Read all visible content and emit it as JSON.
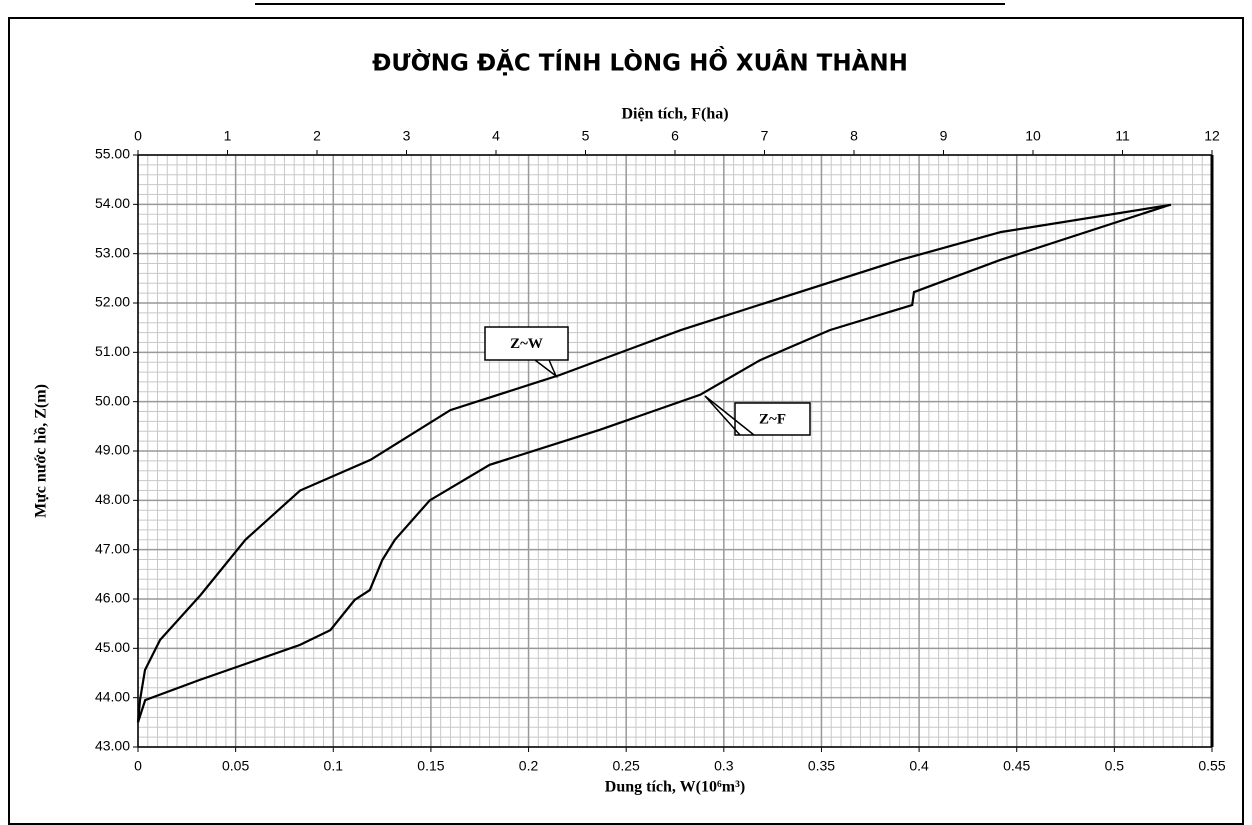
{
  "chart_data": {
    "type": "line",
    "title": "ĐƯỜNG ĐẶC TÍNH LÒNG HỒ XUÂN THÀNH",
    "x_label": "Dung tích, W(10⁶m³)",
    "x2_label": "Diện tích, F(ha)",
    "y_label": "Mực nước hồ, Z(m)",
    "xlim": [
      0,
      0.55
    ],
    "xticks": [
      0,
      0.05,
      0.1,
      0.15,
      0.2,
      0.25,
      0.3,
      0.35,
      0.4,
      0.45,
      0.5,
      0.55
    ],
    "x2lim": [
      0,
      12
    ],
    "x2ticks": [
      0,
      1,
      2,
      3,
      4,
      5,
      6,
      7,
      8,
      9,
      10,
      11,
      12
    ],
    "ylim": [
      43,
      55
    ],
    "yticks": [
      {
        "value": 43,
        "label": "43.00"
      },
      {
        "value": 44,
        "label": "44.00"
      },
      {
        "value": 45,
        "label": "45.00"
      },
      {
        "value": 46,
        "label": "46.00"
      },
      {
        "value": 47,
        "label": "47.00"
      },
      {
        "value": 48,
        "label": "48.00"
      },
      {
        "value": 49,
        "label": "49.00"
      },
      {
        "value": 50,
        "label": "50.00"
      },
      {
        "value": 51,
        "label": "51.00"
      },
      {
        "value": 52,
        "label": "52.00"
      },
      {
        "value": 53,
        "label": "53.00"
      },
      {
        "value": 54,
        "label": "54.00"
      },
      {
        "value": 55,
        "label": "55.00"
      }
    ],
    "grid": true,
    "series": [
      {
        "name": "Z~W",
        "color": "#000000",
        "axis": "x",
        "x": [
          0,
          0.001,
          0.0036,
          0.0113,
          0.032,
          0.055,
          0.083,
          0.119,
          0.16,
          0.216,
          0.278,
          0.318,
          0.39,
          0.442,
          0.529
        ],
        "values": [
          43.5,
          43.95,
          44.56,
          45.17,
          46.08,
          47.2,
          48.2,
          48.82,
          49.83,
          50.54,
          51.45,
          51.96,
          52.87,
          53.44,
          53.99
        ]
      },
      {
        "name": "Z~F",
        "color": "#000000",
        "axis": "x2",
        "x": [
          0,
          0.08,
          0.69,
          1.81,
          2.15,
          2.42,
          2.59,
          2.73,
          2.87,
          3.26,
          3.93,
          5.16,
          6.28,
          6.95,
          7.73,
          8.65,
          8.67,
          9.63,
          11.53
        ],
        "values": [
          43.5,
          43.95,
          44.36,
          45.07,
          45.37,
          45.98,
          46.18,
          46.79,
          47.2,
          48.0,
          48.72,
          49.43,
          50.14,
          50.84,
          51.45,
          51.96,
          52.22,
          52.87,
          53.99
        ]
      }
    ],
    "annotations": [
      {
        "text": "Z~W"
      },
      {
        "text": "Z~F"
      }
    ]
  }
}
